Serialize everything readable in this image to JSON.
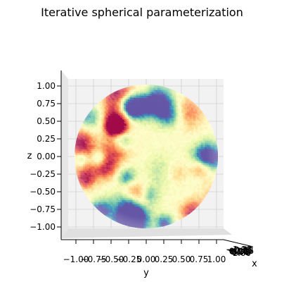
{
  "chart_data": {
    "type": "scatter",
    "title": "Iterative spherical parameterization",
    "xlabel": "x",
    "ylabel": "y",
    "zlabel": "z",
    "colormap": "Spectral",
    "view": "3d",
    "grid": true,
    "y_ticks": [
      "−1.00",
      "−0.75",
      "−0.50",
      "−0.25",
      "0.00",
      "0.25",
      "0.50",
      "0.75",
      "1.00"
    ],
    "z_ticks": [
      "1.00",
      "0.75",
      "0.50",
      "0.25",
      "0.00",
      "−0.25",
      "−0.50",
      "−0.75",
      "−1.00"
    ],
    "x_ticks": [
      "−1.00",
      "−0.75",
      "−0.50",
      "−0.25",
      "0.00",
      "0.25",
      "0.50",
      "0.75",
      "1.00"
    ],
    "xlim": [
      -1,
      1
    ],
    "ylim": [
      -1,
      1
    ],
    "zlim": [
      -1,
      1
    ]
  }
}
